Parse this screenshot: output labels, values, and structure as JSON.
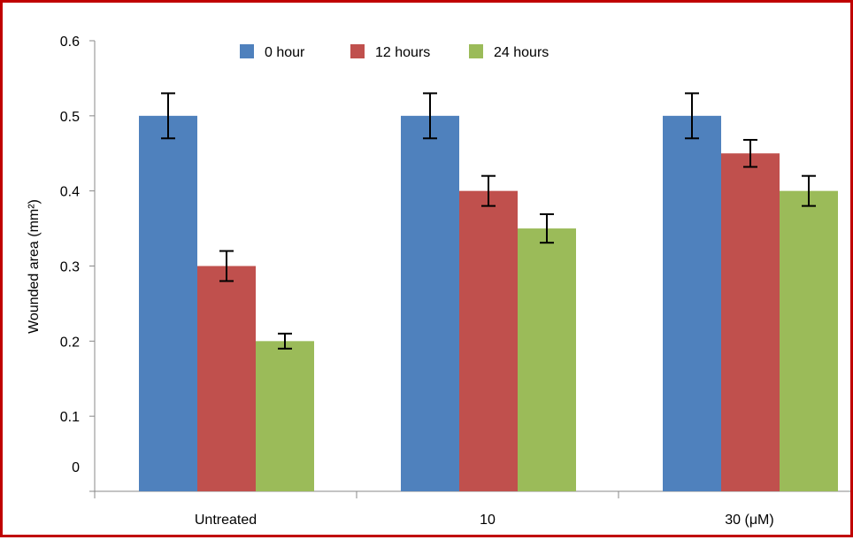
{
  "chart_data": {
    "type": "bar",
    "categories": [
      "Untreated",
      "10",
      "30 (μM)"
    ],
    "series": [
      {
        "name": "0 hour",
        "color": "#4f81bd",
        "values": [
          0.5,
          0.5,
          0.5
        ],
        "errors": [
          0.03,
          0.03,
          0.03
        ]
      },
      {
        "name": "12 hours",
        "color": "#c0504d",
        "values": [
          0.3,
          0.4,
          0.45
        ],
        "errors": [
          0.02,
          0.02,
          0.018
        ]
      },
      {
        "name": "24 hours",
        "color": "#9bbb59",
        "values": [
          0.2,
          0.35,
          0.4
        ],
        "errors": [
          0.01,
          0.019,
          0.02
        ]
      }
    ],
    "ylabel": "Wounded area (mm²)",
    "ylim": [
      0,
      0.6
    ],
    "yticks": [
      0,
      0.1,
      0.2,
      0.3,
      0.4,
      0.5,
      0.6
    ],
    "ytick_labels": [
      "0",
      "0.1",
      "0.2",
      "0.3",
      "0.4",
      "0.5",
      "0.6"
    ],
    "grid": false,
    "legend_position": "top-center",
    "border_color": "#c00000"
  }
}
